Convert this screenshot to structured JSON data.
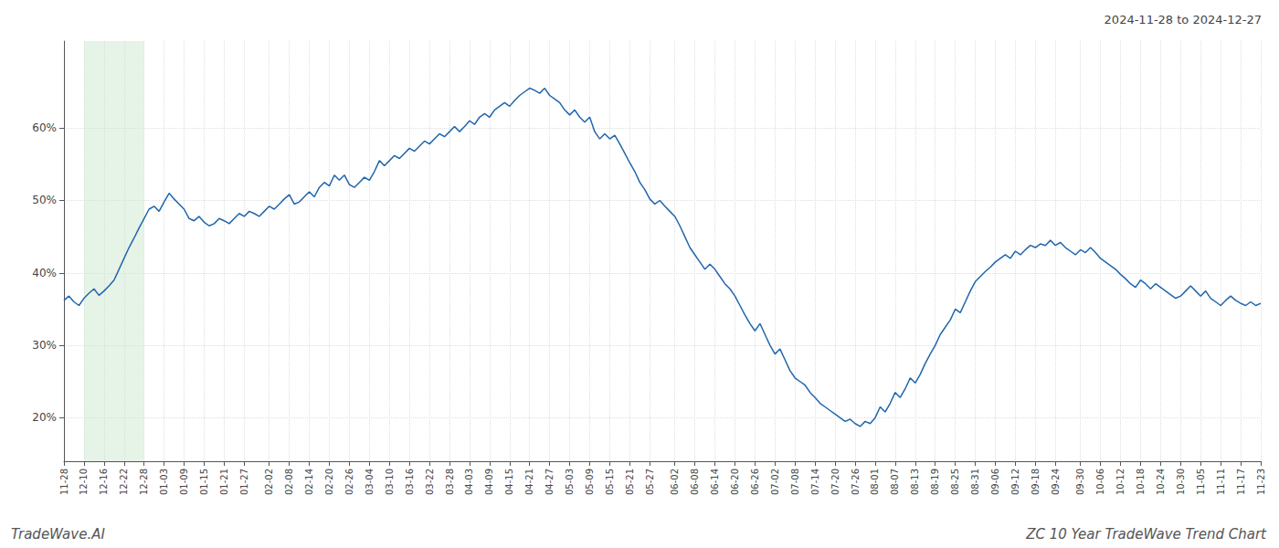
{
  "chart_data": {
    "type": "line",
    "title": "2024-11-28 to 2024-12-27",
    "annotations": [
      "TradeWave.AI",
      "ZC 10 Year TradeWave Trend Chart"
    ],
    "color": "#2166ac",
    "spans": [
      {
        "start": "12-10",
        "end": "12-28",
        "color": "#c8e6c9"
      }
    ],
    "ylim": [
      14,
      72
    ],
    "yticks": [
      {
        "value": 20,
        "label": "20%"
      },
      {
        "value": 30,
        "label": "30%"
      },
      {
        "value": 40,
        "label": "40%"
      },
      {
        "value": 50,
        "label": "50%"
      },
      {
        "value": 60,
        "label": "60%"
      }
    ],
    "grid": true,
    "categories": [
      "11-28",
      null,
      null,
      null,
      "12-10",
      null,
      null,
      null,
      "12-16",
      null,
      null,
      null,
      "12-22",
      null,
      null,
      null,
      "12-28",
      null,
      null,
      null,
      "01-03",
      null,
      null,
      null,
      "01-09",
      null,
      null,
      null,
      "01-15",
      null,
      null,
      null,
      "01-21",
      null,
      null,
      null,
      "01-27",
      null,
      null,
      null,
      null,
      "02-02",
      null,
      null,
      null,
      "02-08",
      null,
      null,
      null,
      "02-14",
      null,
      null,
      null,
      "02-20",
      null,
      null,
      null,
      "02-26",
      null,
      null,
      null,
      "03-04",
      null,
      null,
      null,
      "03-10",
      null,
      null,
      null,
      "03-16",
      null,
      null,
      null,
      "03-22",
      null,
      null,
      null,
      "03-28",
      null,
      null,
      null,
      "04-03",
      null,
      null,
      null,
      "04-09",
      null,
      null,
      null,
      "04-15",
      null,
      null,
      null,
      "04-21",
      null,
      null,
      null,
      "04-27",
      null,
      null,
      null,
      "05-03",
      null,
      null,
      null,
      "05-09",
      null,
      null,
      null,
      "05-15",
      null,
      null,
      null,
      "05-21",
      null,
      null,
      null,
      "05-27",
      null,
      null,
      null,
      null,
      "06-02",
      null,
      null,
      null,
      "06-08",
      null,
      null,
      null,
      "06-14",
      null,
      null,
      null,
      "06-20",
      null,
      null,
      null,
      "06-26",
      null,
      null,
      null,
      "07-02",
      null,
      null,
      null,
      "07-08",
      null,
      null,
      null,
      "07-14",
      null,
      null,
      null,
      "07-20",
      null,
      null,
      null,
      "07-26",
      null,
      null,
      null,
      "08-01",
      null,
      null,
      null,
      "08-07",
      null,
      null,
      null,
      "08-13",
      null,
      null,
      null,
      "08-19",
      null,
      null,
      null,
      "08-25",
      null,
      null,
      null,
      "08-31",
      null,
      null,
      null,
      "09-06",
      null,
      null,
      null,
      "09-12",
      null,
      null,
      null,
      "09-18",
      null,
      null,
      null,
      "09-24",
      null,
      null,
      null,
      null,
      "09-30",
      null,
      null,
      null,
      "10-06",
      null,
      null,
      null,
      "10-12",
      null,
      null,
      null,
      "10-18",
      null,
      null,
      null,
      "10-24",
      null,
      null,
      null,
      "10-30",
      null,
      null,
      null,
      "11-05",
      null,
      null,
      null,
      "11-11",
      null,
      null,
      null,
      "11-17",
      null,
      null,
      null,
      "11-23"
    ],
    "values": [
      36.2,
      36.8,
      36.0,
      35.5,
      36.5,
      37.2,
      37.8,
      36.9,
      37.5,
      38.2,
      39.0,
      40.5,
      42.0,
      43.5,
      44.8,
      46.2,
      47.5,
      48.8,
      49.2,
      48.5,
      49.8,
      51.0,
      50.2,
      49.5,
      48.8,
      47.5,
      47.2,
      47.8,
      47.0,
      46.5,
      46.8,
      47.5,
      47.2,
      46.8,
      47.5,
      48.2,
      47.8,
      48.5,
      48.2,
      47.8,
      48.5,
      49.2,
      48.8,
      49.5,
      50.2,
      50.8,
      49.5,
      49.8,
      50.5,
      51.2,
      50.5,
      51.8,
      52.5,
      52.0,
      53.5,
      52.8,
      53.5,
      52.2,
      51.8,
      52.5,
      53.2,
      52.8,
      54.0,
      55.5,
      54.8,
      55.5,
      56.2,
      55.8,
      56.5,
      57.2,
      56.8,
      57.5,
      58.2,
      57.8,
      58.5,
      59.2,
      58.8,
      59.5,
      60.2,
      59.5,
      60.2,
      61.0,
      60.5,
      61.5,
      62.0,
      61.5,
      62.5,
      63.0,
      63.5,
      63.0,
      63.8,
      64.5,
      65.0,
      65.5,
      65.2,
      64.8,
      65.5,
      64.5,
      64.0,
      63.5,
      62.5,
      61.8,
      62.5,
      61.5,
      60.8,
      61.5,
      59.5,
      58.5,
      59.2,
      58.5,
      59.0,
      57.8,
      56.5,
      55.2,
      54.0,
      52.5,
      51.5,
      50.2,
      49.5,
      50.0,
      49.2,
      48.5,
      47.8,
      46.5,
      45.0,
      43.5,
      42.5,
      41.5,
      40.5,
      41.2,
      40.5,
      39.5,
      38.5,
      37.8,
      36.8,
      35.5,
      34.2,
      33.0,
      32.0,
      33.0,
      31.5,
      30.0,
      28.8,
      29.5,
      28.0,
      26.5,
      25.5,
      25.0,
      24.5,
      23.5,
      22.8,
      22.0,
      21.5,
      21.0,
      20.5,
      20.0,
      19.5,
      19.8,
      19.2,
      18.8,
      19.5,
      19.2,
      20.0,
      21.5,
      20.8,
      22.0,
      23.5,
      22.8,
      24.0,
      25.5,
      24.8,
      26.0,
      27.5,
      28.8,
      30.0,
      31.5,
      32.5,
      33.5,
      35.0,
      34.5,
      36.0,
      37.5,
      38.8,
      39.5,
      40.2,
      40.8,
      41.5,
      42.0,
      42.5,
      42.0,
      43.0,
      42.5,
      43.2,
      43.8,
      43.5,
      44.0,
      43.8,
      44.5,
      43.8,
      44.2,
      43.5,
      43.0,
      42.5,
      43.2,
      42.8,
      43.5,
      42.8,
      42.0,
      41.5,
      41.0,
      40.5,
      39.8,
      39.2,
      38.5,
      38.0,
      39.0,
      38.5,
      37.8,
      38.5,
      38.0,
      37.5,
      37.0,
      36.5,
      36.8,
      37.5,
      38.2,
      37.5,
      36.8,
      37.5,
      36.5,
      36.0,
      35.5,
      36.2,
      36.8,
      36.2,
      35.8,
      35.5,
      36.0,
      35.5,
      35.8
    ]
  }
}
